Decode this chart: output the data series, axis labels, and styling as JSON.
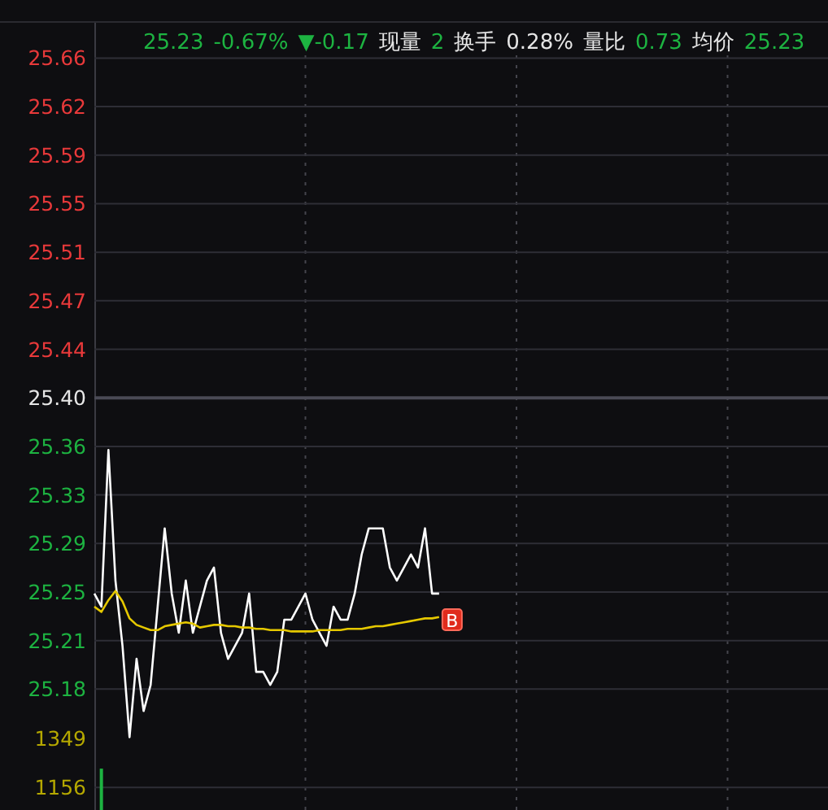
{
  "chart_data": [
    {
      "type": "line",
      "annotations": [
        "25.23",
        "-0.67%",
        "▼-0.17",
        "现量",
        "2",
        "换手",
        "0.28%",
        "量比",
        "0.73",
        "均价",
        "25.23",
        {
          "text": "B",
          "y": 25.23
        }
      ],
      "categories": [
        null,
        null,
        null,
        null,
        null,
        null,
        null,
        null,
        null,
        null,
        null,
        null,
        null,
        null,
        null,
        null,
        null,
        null,
        null,
        null,
        null,
        null,
        null,
        null,
        null,
        null,
        null,
        null,
        null,
        null,
        null,
        null,
        null,
        null,
        null,
        null,
        null,
        null,
        null,
        null,
        null,
        null,
        null,
        null,
        null,
        null,
        null,
        null,
        null,
        null,
        null,
        null,
        null,
        null,
        null,
        null,
        null,
        null,
        null,
        null,
        null,
        null,
        null,
        null,
        null,
        null,
        null,
        null,
        null,
        null,
        null,
        null,
        null,
        null,
        null,
        null,
        null,
        null,
        null,
        null,
        null,
        null,
        null,
        null,
        null,
        null,
        null,
        null,
        null,
        null,
        null,
        null,
        null,
        null,
        null,
        null,
        null,
        null,
        null,
        null,
        null,
        null,
        null,
        null,
        null,
        null,
        null,
        null,
        null,
        null,
        null,
        null,
        null,
        null,
        null,
        null,
        null,
        null,
        null,
        null,
        null
      ],
      "ylim": [
        25.139,
        25.67
      ],
      "yticks": [
        {
          "value": 25.6604,
          "label": "25.66"
        },
        {
          "value": 25.6232,
          "label": "25.62"
        },
        {
          "value": 25.586,
          "label": "25.59"
        },
        {
          "value": 25.5488,
          "label": "25.55"
        },
        {
          "value": 25.5116,
          "label": "25.51"
        },
        {
          "value": 25.4744,
          "label": "25.47"
        },
        {
          "value": 25.4372,
          "label": "25.44"
        },
        {
          "value": 25.4,
          "label": "25.40"
        },
        {
          "value": 25.3628,
          "label": "25.36"
        },
        {
          "value": 25.3256,
          "label": "25.33"
        },
        {
          "value": 25.2884,
          "label": "25.29"
        },
        {
          "value": 25.2512,
          "label": "25.25"
        },
        {
          "value": 25.214,
          "label": "25.21"
        },
        {
          "value": 25.1768,
          "label": "25.18"
        }
      ],
      "ref_lines": [
        {
          "axis": "y",
          "value": 25.4
        }
      ],
      "grid": true,
      "tick_labels": "y",
      "series": [
        {
          "color": "#ffffff",
          "values": [
            25.25,
            25.24,
            25.36,
            25.26,
            25.21,
            25.14,
            25.2,
            25.16,
            25.18,
            25.24,
            25.3,
            25.25,
            25.22,
            25.26,
            25.22,
            25.24,
            25.26,
            25.27,
            25.22,
            25.2,
            25.21,
            25.22,
            25.25,
            25.19,
            25.19,
            25.18,
            25.19,
            25.23,
            25.23,
            25.24,
            25.25,
            25.23,
            25.22,
            25.21,
            25.24,
            25.23,
            25.23,
            25.25,
            25.28,
            25.3,
            25.3,
            25.3,
            25.27,
            25.26,
            25.27,
            25.28,
            25.27,
            25.3,
            25.25,
            25.25,
            null,
            null,
            null,
            null,
            null,
            null,
            null,
            null,
            null,
            null,
            null,
            null,
            null,
            null,
            null,
            null,
            null,
            null,
            null,
            null,
            null,
            null,
            null,
            null,
            null,
            null,
            null,
            null,
            null,
            null,
            null,
            null,
            null,
            null,
            null,
            null,
            null,
            null,
            null,
            null,
            null,
            null,
            null,
            null,
            null,
            null,
            null,
            null,
            null,
            null,
            null,
            null,
            null,
            null,
            null,
            null,
            null,
            null,
            null,
            null,
            null,
            null,
            null,
            null,
            null,
            null,
            null,
            null,
            null,
            null,
            null
          ]
        },
        {
          "color": "#e5c800",
          "values": [
            25.24,
            25.236,
            25.245,
            25.252,
            25.244,
            25.231,
            25.226,
            25.224,
            25.222,
            25.222,
            25.225,
            25.226,
            25.227,
            25.228,
            25.227,
            25.224,
            25.225,
            25.226,
            25.226,
            25.225,
            25.225,
            25.224,
            25.224,
            25.223,
            25.223,
            25.222,
            25.222,
            25.222,
            25.221,
            25.221,
            25.221,
            25.221,
            25.222,
            25.222,
            25.222,
            25.222,
            25.223,
            25.223,
            25.223,
            25.224,
            25.225,
            25.225,
            25.226,
            25.227,
            25.228,
            25.229,
            25.23,
            25.231,
            25.231,
            25.232,
            null,
            null,
            null,
            null,
            null,
            null,
            null,
            null,
            null,
            null,
            null,
            null,
            null,
            null,
            null,
            null,
            null,
            null,
            null,
            null,
            null,
            null,
            null,
            null,
            null,
            null,
            null,
            null,
            null,
            null,
            null,
            null,
            null,
            null,
            null,
            null,
            null,
            null,
            null,
            null,
            null,
            null,
            null,
            null,
            null,
            null,
            null,
            null,
            null,
            null,
            null,
            null,
            null,
            null,
            null,
            null,
            null,
            null,
            null,
            null,
            null,
            null,
            null,
            null,
            null,
            null,
            null,
            null,
            null,
            null,
            null
          ]
        }
      ]
    },
    {
      "type": "bar",
      "categories": [
        null,
        null,
        null,
        null,
        null,
        null,
        null,
        null,
        null,
        null,
        null,
        null,
        null,
        null,
        null,
        null,
        null,
        null,
        null,
        null,
        null,
        null,
        null,
        null,
        null,
        null,
        null,
        null,
        null,
        null,
        null,
        null,
        null,
        null,
        null,
        null,
        null,
        null,
        null,
        null,
        null,
        null,
        null,
        null,
        null,
        null,
        null,
        null,
        null,
        null,
        null,
        null,
        null,
        null,
        null,
        null,
        null,
        null,
        null,
        null,
        null,
        null,
        null,
        null,
        null,
        null,
        null,
        null,
        null,
        null,
        null,
        null,
        null,
        null,
        null,
        null,
        null,
        null,
        null,
        null,
        null,
        null,
        null,
        null,
        null,
        null,
        null,
        null,
        null,
        null,
        null,
        null,
        null,
        null,
        null,
        null,
        null,
        null,
        null,
        null,
        null,
        null,
        null,
        null,
        null,
        null,
        null,
        null,
        null,
        null,
        null,
        null,
        null,
        null,
        null,
        null,
        null,
        null,
        null,
        null,
        null
      ],
      "ylim": [
        1067,
        1349
      ],
      "yticks": [
        1349,
        1156
      ],
      "grid": "x",
      "tick_labels": "y",
      "ref_lines": [
        {
          "axis": "y",
          "value": 1156,
          "color": "#2e2e36"
        }
      ],
      "series": [
        {
          "color": "#1db341",
          "values": [
            null,
            1230,
            null,
            null,
            null,
            null,
            null,
            null,
            null,
            null,
            null,
            null,
            null,
            null,
            null,
            null,
            null,
            null,
            null,
            null,
            null,
            null,
            null,
            null,
            null,
            null,
            null,
            null,
            null,
            null,
            null,
            null,
            null,
            null,
            null,
            null,
            null,
            null,
            null,
            null,
            null,
            null,
            null,
            null,
            null,
            null,
            null,
            null,
            null,
            null,
            null,
            null,
            null,
            null,
            null,
            null,
            null,
            null,
            null,
            null,
            null,
            null,
            null,
            null,
            null,
            null,
            null,
            null,
            null,
            null,
            null,
            null,
            null,
            null,
            null,
            null,
            null,
            null,
            null,
            null,
            null,
            null,
            null,
            null,
            null,
            null,
            null,
            null,
            null,
            null,
            null,
            null,
            null,
            null,
            null,
            null,
            null,
            null,
            null,
            null,
            null,
            null,
            null,
            null,
            null,
            null,
            null,
            null,
            null,
            null,
            null,
            null,
            null,
            null,
            null,
            null,
            null,
            null,
            null,
            null,
            null
          ]
        }
      ]
    }
  ]
}
